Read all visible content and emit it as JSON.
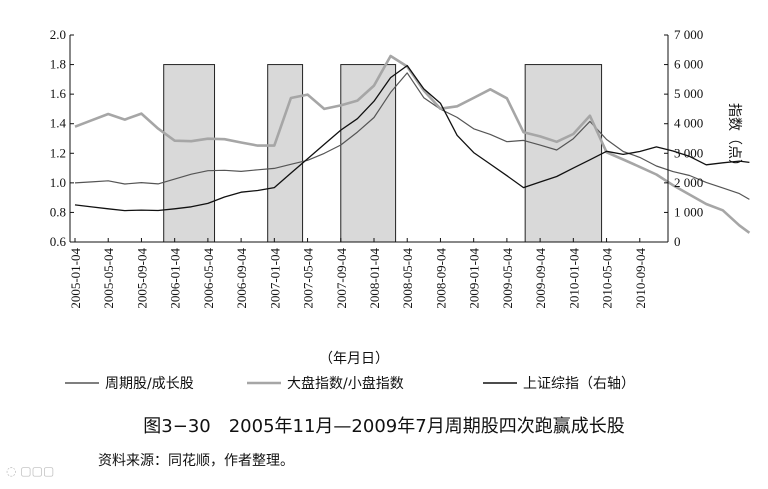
{
  "chart_data": {
    "type": "line",
    "title": "图3−30　2005年11月—2009年7月周期股四次跑赢成长股",
    "source": "资料来源：同花顺，作者整理。",
    "xlabel": "（年月日）",
    "ylabel_right": "指数（点）",
    "ylim_left": [
      0.6,
      2.0
    ],
    "ylim_right": [
      0,
      7000
    ],
    "yticks_left": [
      "0.6",
      "0.8",
      "1.0",
      "1.2",
      "1.4",
      "1.6",
      "1.8",
      "2.0"
    ],
    "yticks_right": [
      "0",
      "1 000",
      "2 000",
      "3 000",
      "4 000",
      "5 000",
      "6 000",
      "7 000"
    ],
    "x_ticks": [
      "2005-01-04",
      "2005-05-04",
      "2005-09-04",
      "2006-01-04",
      "2006-05-04",
      "2006-09-04",
      "2007-01-04",
      "2007-05-04",
      "2007-09-04",
      "2008-01-04",
      "2008-05-04",
      "2008-09-04",
      "2009-01-04",
      "2009-05-04",
      "2009-09-04",
      "2010-01-04",
      "2010-05-04",
      "2010-09-04"
    ],
    "shaded_periods": [
      {
        "start": 2.67,
        "end": 4.2,
        "top": 1.8
      },
      {
        "start": 5.8,
        "end": 6.85,
        "top": 1.8
      },
      {
        "start": 8.0,
        "end": 9.65,
        "top": 1.8
      },
      {
        "start": 13.55,
        "end": 15.85,
        "top": 1.8
      }
    ],
    "series": [
      {
        "name": "周期股/成长股",
        "axis": "left",
        "color": "#555555",
        "width": 1.2,
        "x": [
          0,
          0.5,
          1,
          1.5,
          2,
          2.5,
          3,
          3.5,
          4,
          4.5,
          5,
          5.5,
          6,
          6.5,
          7,
          7.5,
          8,
          8.5,
          9,
          9.5,
          10,
          10.5,
          11,
          11.5,
          12,
          12.5,
          13,
          13.5,
          14,
          14.5,
          15,
          15.5,
          16,
          16.5,
          17,
          17.5,
          18,
          18.5,
          19,
          19.5,
          20,
          20.3
        ],
        "y": [
          1.0,
          1.01,
          1.02,
          1.0,
          1.01,
          1.0,
          1.03,
          1.06,
          1.08,
          1.08,
          1.07,
          1.08,
          1.09,
          1.12,
          1.15,
          1.2,
          1.26,
          1.35,
          1.45,
          1.62,
          1.75,
          1.58,
          1.5,
          1.44,
          1.36,
          1.32,
          1.27,
          1.28,
          1.25,
          1.22,
          1.3,
          1.42,
          1.3,
          1.22,
          1.18,
          1.12,
          1.08,
          1.05,
          1.0,
          0.96,
          0.92,
          0.88
        ]
      },
      {
        "name": "大盘指数/小盘指数",
        "axis": "left",
        "color": "#a6a6a6",
        "width": 2.6,
        "x": [
          0,
          0.5,
          1,
          1.5,
          2,
          2.5,
          3,
          3.5,
          4,
          4.5,
          5,
          5.5,
          6,
          6.5,
          7,
          7.5,
          8,
          8.5,
          9,
          9.5,
          10,
          10.5,
          11,
          11.5,
          12,
          12.5,
          13,
          13.5,
          14,
          14.5,
          15,
          15.5,
          16,
          16.5,
          17,
          17.5,
          18,
          18.5,
          19,
          19.5,
          20,
          20.3
        ],
        "y": [
          1.38,
          1.42,
          1.46,
          1.42,
          1.46,
          1.36,
          1.28,
          1.28,
          1.3,
          1.3,
          1.28,
          1.26,
          1.26,
          1.58,
          1.6,
          1.5,
          1.52,
          1.55,
          1.65,
          1.85,
          1.78,
          1.62,
          1.5,
          1.52,
          1.58,
          1.64,
          1.58,
          1.35,
          1.32,
          1.28,
          1.33,
          1.45,
          1.2,
          1.15,
          1.1,
          1.05,
          0.98,
          0.92,
          0.86,
          0.82,
          0.72,
          0.67
        ]
      },
      {
        "name": "上证综指（右轴）",
        "axis": "right",
        "color": "#111111",
        "width": 1.3,
        "x": [
          0,
          0.5,
          1,
          1.5,
          2,
          2.5,
          3,
          3.5,
          4,
          4.5,
          5,
          5.5,
          6,
          6.5,
          7,
          7.5,
          8,
          8.5,
          9,
          9.5,
          10,
          10.5,
          11,
          11.5,
          12,
          12.5,
          13,
          13.5,
          14,
          14.5,
          15,
          15.5,
          16,
          16.5,
          17,
          17.5,
          18,
          18.5,
          19,
          19.5,
          20,
          20.3
        ],
        "y": [
          1250,
          1200,
          1150,
          1100,
          1120,
          1100,
          1150,
          1200,
          1300,
          1500,
          1650,
          1700,
          1800,
          2300,
          2800,
          3300,
          3800,
          4200,
          4800,
          5600,
          6000,
          5200,
          4700,
          3600,
          3000,
          2600,
          2200,
          1800,
          2000,
          2200,
          2500,
          2800,
          3100,
          3000,
          3100,
          3250,
          3100,
          2900,
          2600,
          2650,
          2700,
          2650
        ]
      }
    ]
  }
}
